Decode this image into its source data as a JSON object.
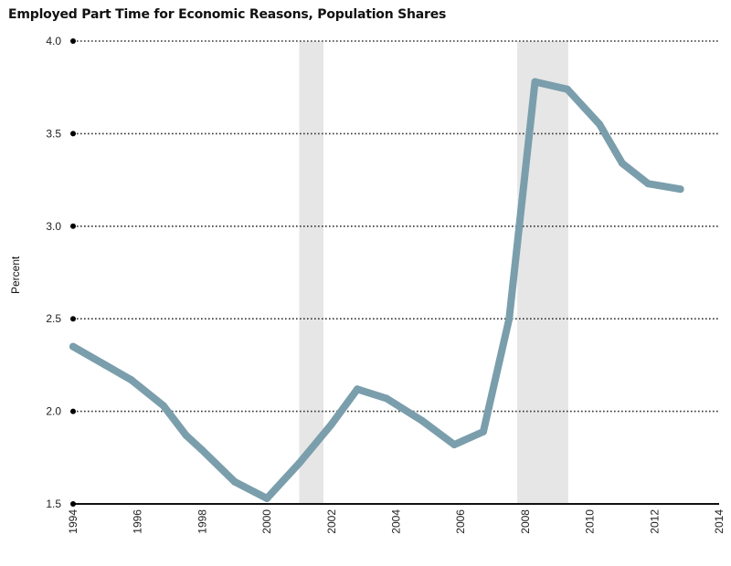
{
  "chart_data": {
    "type": "line",
    "title": "Employed Part Time for Economic Reasons, Population Shares",
    "xlabel": "",
    "ylabel": "Percent",
    "xlim": [
      1994,
      2014
    ],
    "ylim": [
      1.5,
      4.0
    ],
    "x_ticks": [
      "1994",
      "1996",
      "1998",
      "2000",
      "2002",
      "2004",
      "2006",
      "2008",
      "2010",
      "2012",
      "2014"
    ],
    "y_ticks": [
      "1.5",
      "2.0",
      "2.5",
      "3.0",
      "3.5",
      "4.0"
    ],
    "grid": true,
    "recession_shading": [
      [
        2001.0,
        2001.75
      ],
      [
        2007.75,
        2009.33
      ]
    ],
    "line_color": "#7a9eac",
    "shade_color": "#e6e6e6",
    "series": [
      {
        "x": [
          1994.0,
          1995.0,
          1995.8,
          1996.8,
          1997.5,
          1998.0,
          1999.0,
          2000.0,
          2001.0,
          2002.0,
          2002.8,
          2003.7,
          2004.8,
          2005.8,
          2006.7,
          2007.5,
          2008.3,
          2009.3,
          2010.3,
          2011.0,
          2011.8,
          2012.8
        ],
        "y": [
          2.35,
          2.25,
          2.17,
          2.03,
          1.87,
          1.79,
          1.62,
          1.53,
          1.72,
          1.93,
          2.12,
          2.07,
          1.95,
          1.82,
          1.89,
          2.5,
          3.78,
          3.74,
          3.55,
          3.34,
          3.23,
          3.2
        ]
      }
    ]
  }
}
